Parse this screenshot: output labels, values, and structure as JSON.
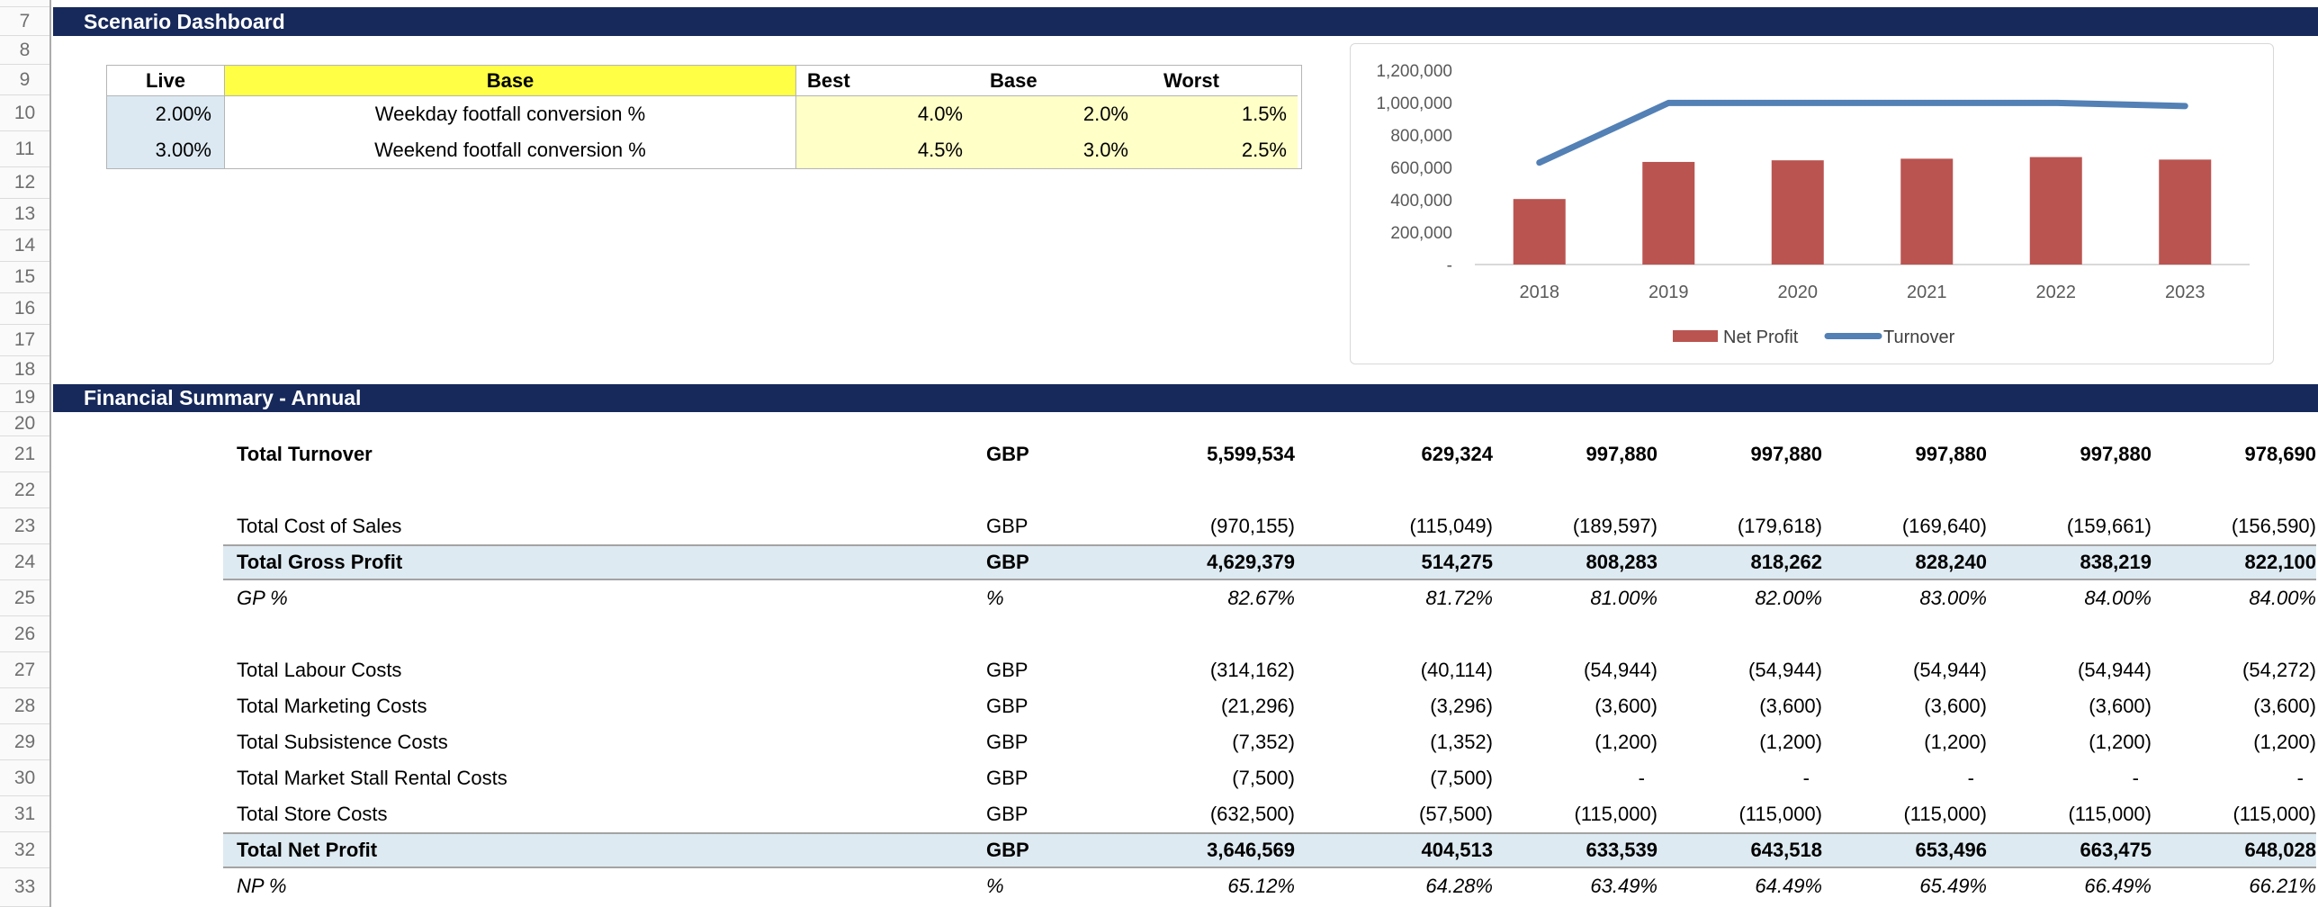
{
  "gutter": {
    "rows": [
      "7",
      "8",
      "9",
      "10",
      "11",
      "12",
      "13",
      "14",
      "15",
      "16",
      "17",
      "18",
      "19",
      "20",
      "21",
      "22",
      "23",
      "24",
      "25",
      "26",
      "27",
      "28",
      "29",
      "30",
      "31",
      "32",
      "33"
    ]
  },
  "scenario": {
    "title": "Scenario Dashboard",
    "table": {
      "headers": {
        "live": "Live",
        "scenario_name": "Base",
        "best": "Best",
        "base": "Base",
        "worst": "Worst"
      },
      "rows": [
        {
          "live": "2.00%",
          "description": "Weekday footfall conversion %",
          "best": "4.0%",
          "base": "2.0%",
          "worst": "1.5%"
        },
        {
          "live": "3.00%",
          "description": "Weekend footfall conversion %",
          "best": "4.5%",
          "base": "3.0%",
          "worst": "2.5%"
        }
      ]
    }
  },
  "chart_data": {
    "type": "bar",
    "categories": [
      "2018",
      "2019",
      "2020",
      "2021",
      "2022",
      "2023"
    ],
    "series": [
      {
        "name": "Net Profit",
        "type": "bar",
        "color": "#BA5450",
        "values": [
          404513,
          633539,
          643518,
          653496,
          663475,
          648028
        ]
      },
      {
        "name": "Turnover",
        "type": "line",
        "color": "#5380B5",
        "values": [
          629324,
          997880,
          997880,
          997880,
          997880,
          978690
        ]
      }
    ],
    "title": "",
    "xlabel": "",
    "ylabel": "",
    "ylim": [
      0,
      1200000
    ],
    "ytick_step": 200000,
    "ytick_labels": [
      "-",
      "200,000",
      "400,000",
      "600,000",
      "800,000",
      "1,000,000",
      "1,200,000"
    ],
    "legend_position": "bottom",
    "grid": false,
    "axis_color": "#D9D9D9",
    "tick_label_color": "#595959",
    "legend_text_color": "#404040"
  },
  "financial": {
    "title": "Financial Summary - Annual",
    "rows": [
      {
        "label": "Total Turnover",
        "unit": "GBP",
        "style": "bold",
        "values": [
          "5,599,534",
          "629,324",
          "997,880",
          "997,880",
          "997,880",
          "997,880",
          "978,690"
        ]
      },
      {
        "blank": true
      },
      {
        "label": "Total Cost of Sales",
        "unit": "GBP",
        "style": "normal",
        "values": [
          "(970,155)",
          "(115,049)",
          "(189,597)",
          "(179,618)",
          "(169,640)",
          "(159,661)",
          "(156,590)"
        ]
      },
      {
        "label": "Total Gross Profit",
        "unit": "GBP",
        "style": "bold-highlight",
        "values": [
          "4,629,379",
          "514,275",
          "808,283",
          "818,262",
          "828,240",
          "838,219",
          "822,100"
        ]
      },
      {
        "label": "GP %",
        "unit": "%",
        "style": "percent",
        "values": [
          "82.67%",
          "81.72%",
          "81.00%",
          "82.00%",
          "83.00%",
          "84.00%",
          "84.00%"
        ]
      },
      {
        "blank": true
      },
      {
        "label": "Total Labour Costs",
        "unit": "GBP",
        "style": "normal",
        "values": [
          "(314,162)",
          "(40,114)",
          "(54,944)",
          "(54,944)",
          "(54,944)",
          "(54,944)",
          "(54,272)"
        ]
      },
      {
        "label": "Total Marketing Costs",
        "unit": "GBP",
        "style": "normal",
        "values": [
          "(21,296)",
          "(3,296)",
          "(3,600)",
          "(3,600)",
          "(3,600)",
          "(3,600)",
          "(3,600)"
        ]
      },
      {
        "label": "Total Subsistence Costs",
        "unit": "GBP",
        "style": "normal",
        "values": [
          "(7,352)",
          "(1,352)",
          "(1,200)",
          "(1,200)",
          "(1,200)",
          "(1,200)",
          "(1,200)"
        ]
      },
      {
        "label": "Total Market Stall Rental Costs",
        "unit": "GBP",
        "style": "normal",
        "values": [
          "(7,500)",
          "(7,500)",
          "-",
          "-",
          "-",
          "-",
          "-"
        ]
      },
      {
        "label": "Total Store Costs",
        "unit": "GBP",
        "style": "normal",
        "values": [
          "(632,500)",
          "(57,500)",
          "(115,000)",
          "(115,000)",
          "(115,000)",
          "(115,000)",
          "(115,000)"
        ]
      },
      {
        "label": "Total Net Profit",
        "unit": "GBP",
        "style": "bold-highlight",
        "values": [
          "3,646,569",
          "404,513",
          "633,539",
          "643,518",
          "653,496",
          "663,475",
          "648,028"
        ]
      },
      {
        "label": "NP %",
        "unit": "%",
        "style": "percent",
        "values": [
          "65.12%",
          "64.28%",
          "63.49%",
          "64.49%",
          "65.49%",
          "66.49%",
          "66.21%"
        ]
      }
    ]
  }
}
